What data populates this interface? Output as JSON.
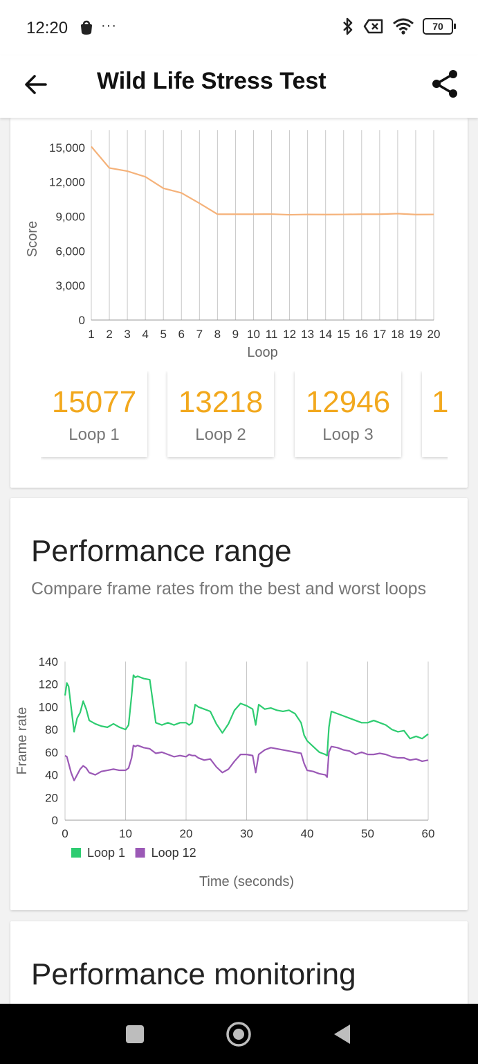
{
  "status_bar": {
    "time": "12:20",
    "more": "···",
    "battery": "70",
    "icons": [
      "notification-bag-icon",
      "bluetooth-icon",
      "data-disabled-icon",
      "wifi-icon",
      "battery-icon"
    ]
  },
  "app_bar": {
    "title": "Wild Life Stress Test",
    "back_icon": "arrow-left-icon",
    "share_icon": "share-icon"
  },
  "loop_scores": [
    {
      "score": "15077",
      "label": "Loop 1"
    },
    {
      "score": "13218",
      "label": "Loop 2"
    },
    {
      "score": "12946",
      "label": "Loop 3"
    },
    {
      "score": "1",
      "label": ""
    }
  ],
  "performance_range": {
    "title": "Performance range",
    "subtitle": "Compare frame rates from the best and worst loops"
  },
  "performance_monitoring": {
    "title": "Performance monitoring"
  },
  "chart_data": [
    {
      "type": "line",
      "xlabel": "Loop",
      "ylabel": "Score",
      "x": [
        1,
        2,
        3,
        4,
        5,
        6,
        7,
        8,
        9,
        10,
        11,
        12,
        13,
        14,
        15,
        16,
        17,
        18,
        19,
        20
      ],
      "series": [
        {
          "values": [
            15077,
            13218,
            12946,
            12450,
            11450,
            11050,
            10150,
            9200,
            9200,
            9200,
            9210,
            9150,
            9180,
            9170,
            9180,
            9200,
            9200,
            9250,
            9170,
            9180
          ],
          "color": "#f5b27a"
        }
      ],
      "ylim": [
        0,
        16500
      ],
      "yticks": [
        0,
        3000,
        6000,
        9000,
        12000,
        15000
      ],
      "ytick_labels": [
        "0",
        "3,000",
        "6,000",
        "9,000",
        "12,000",
        "15,000"
      ],
      "xtick_labels": [
        "1",
        "2",
        "3",
        "4",
        "5",
        "6",
        "7",
        "8",
        "9",
        "10",
        "11",
        "12",
        "13",
        "14",
        "15",
        "16",
        "17",
        "18",
        "19",
        "20"
      ],
      "grid": "vertical"
    },
    {
      "type": "line",
      "xlabel": "Time (seconds)",
      "ylabel": "Frame rate",
      "xlim": [
        0,
        60
      ],
      "ylim": [
        0,
        140
      ],
      "xticks": [
        0,
        10,
        20,
        30,
        40,
        50,
        60
      ],
      "yticks": [
        0,
        20,
        40,
        60,
        80,
        100,
        120,
        140
      ],
      "legend": "bottom-left",
      "grid": "vertical",
      "series": [
        {
          "name": "Loop 1",
          "color": "#2ecc71",
          "x": [
            0,
            0.3,
            0.6,
            1,
            1.5,
            2,
            2.5,
            3,
            3.5,
            4,
            5,
            6,
            7,
            8,
            9,
            10,
            10.5,
            11,
            11.3,
            11.6,
            12,
            13,
            14,
            15,
            16,
            17,
            18,
            19,
            20,
            20.5,
            21,
            21.5,
            22,
            23,
            24,
            25,
            26,
            27,
            28,
            29,
            30,
            31,
            31.5,
            32,
            33,
            34,
            35,
            36,
            37,
            38,
            39,
            39.5,
            40,
            41,
            42,
            43,
            43.3,
            43.6,
            44,
            45,
            46,
            47,
            48,
            49,
            50,
            51,
            52,
            53,
            54,
            55,
            56,
            57,
            58,
            59,
            60
          ],
          "y": [
            110,
            121,
            118,
            100,
            78,
            90,
            95,
            105,
            98,
            88,
            85,
            83,
            82,
            85,
            82,
            80,
            84,
            110,
            128,
            126,
            127,
            125,
            124,
            86,
            84,
            86,
            84,
            86,
            86,
            84,
            86,
            102,
            100,
            98,
            96,
            85,
            77,
            85,
            97,
            103,
            101,
            98,
            84,
            102,
            98,
            99,
            97,
            96,
            97,
            94,
            86,
            75,
            70,
            65,
            60,
            58,
            57,
            82,
            96,
            94,
            92,
            90,
            88,
            86,
            86,
            88,
            86,
            84,
            80,
            78,
            79,
            72,
            74,
            72,
            76
          ],
          "width": 2.2
        },
        {
          "name": "Loop 12",
          "color": "#9b59b6",
          "x": [
            0,
            0.3,
            0.6,
            1,
            1.5,
            2,
            2.5,
            3,
            3.5,
            4,
            5,
            6,
            7,
            8,
            9,
            10,
            10.5,
            11,
            11.3,
            11.6,
            12,
            13,
            14,
            15,
            16,
            17,
            18,
            19,
            20,
            20.5,
            21,
            21.5,
            22,
            23,
            24,
            25,
            26,
            27,
            28,
            29,
            30,
            31,
            31.5,
            32,
            33,
            34,
            35,
            36,
            37,
            38,
            39,
            39.5,
            40,
            41,
            42,
            43,
            43.3,
            43.6,
            44,
            45,
            46,
            47,
            48,
            49,
            50,
            51,
            52,
            53,
            54,
            55,
            56,
            57,
            58,
            59,
            60
          ],
          "y": [
            57,
            56,
            50,
            42,
            35,
            40,
            45,
            48,
            46,
            42,
            40,
            43,
            44,
            45,
            44,
            44,
            46,
            55,
            66,
            65,
            66,
            64,
            63,
            59,
            60,
            58,
            56,
            57,
            56,
            58,
            57,
            57,
            55,
            53,
            54,
            47,
            42,
            45,
            52,
            58,
            58,
            57,
            42,
            58,
            62,
            64,
            63,
            62,
            61,
            60,
            59,
            50,
            44,
            43,
            41,
            40,
            38,
            60,
            65,
            64,
            62,
            61,
            58,
            60,
            58,
            58,
            59,
            58,
            56,
            55,
            55,
            53,
            54,
            52,
            53
          ],
          "width": 2.2
        }
      ]
    }
  ]
}
